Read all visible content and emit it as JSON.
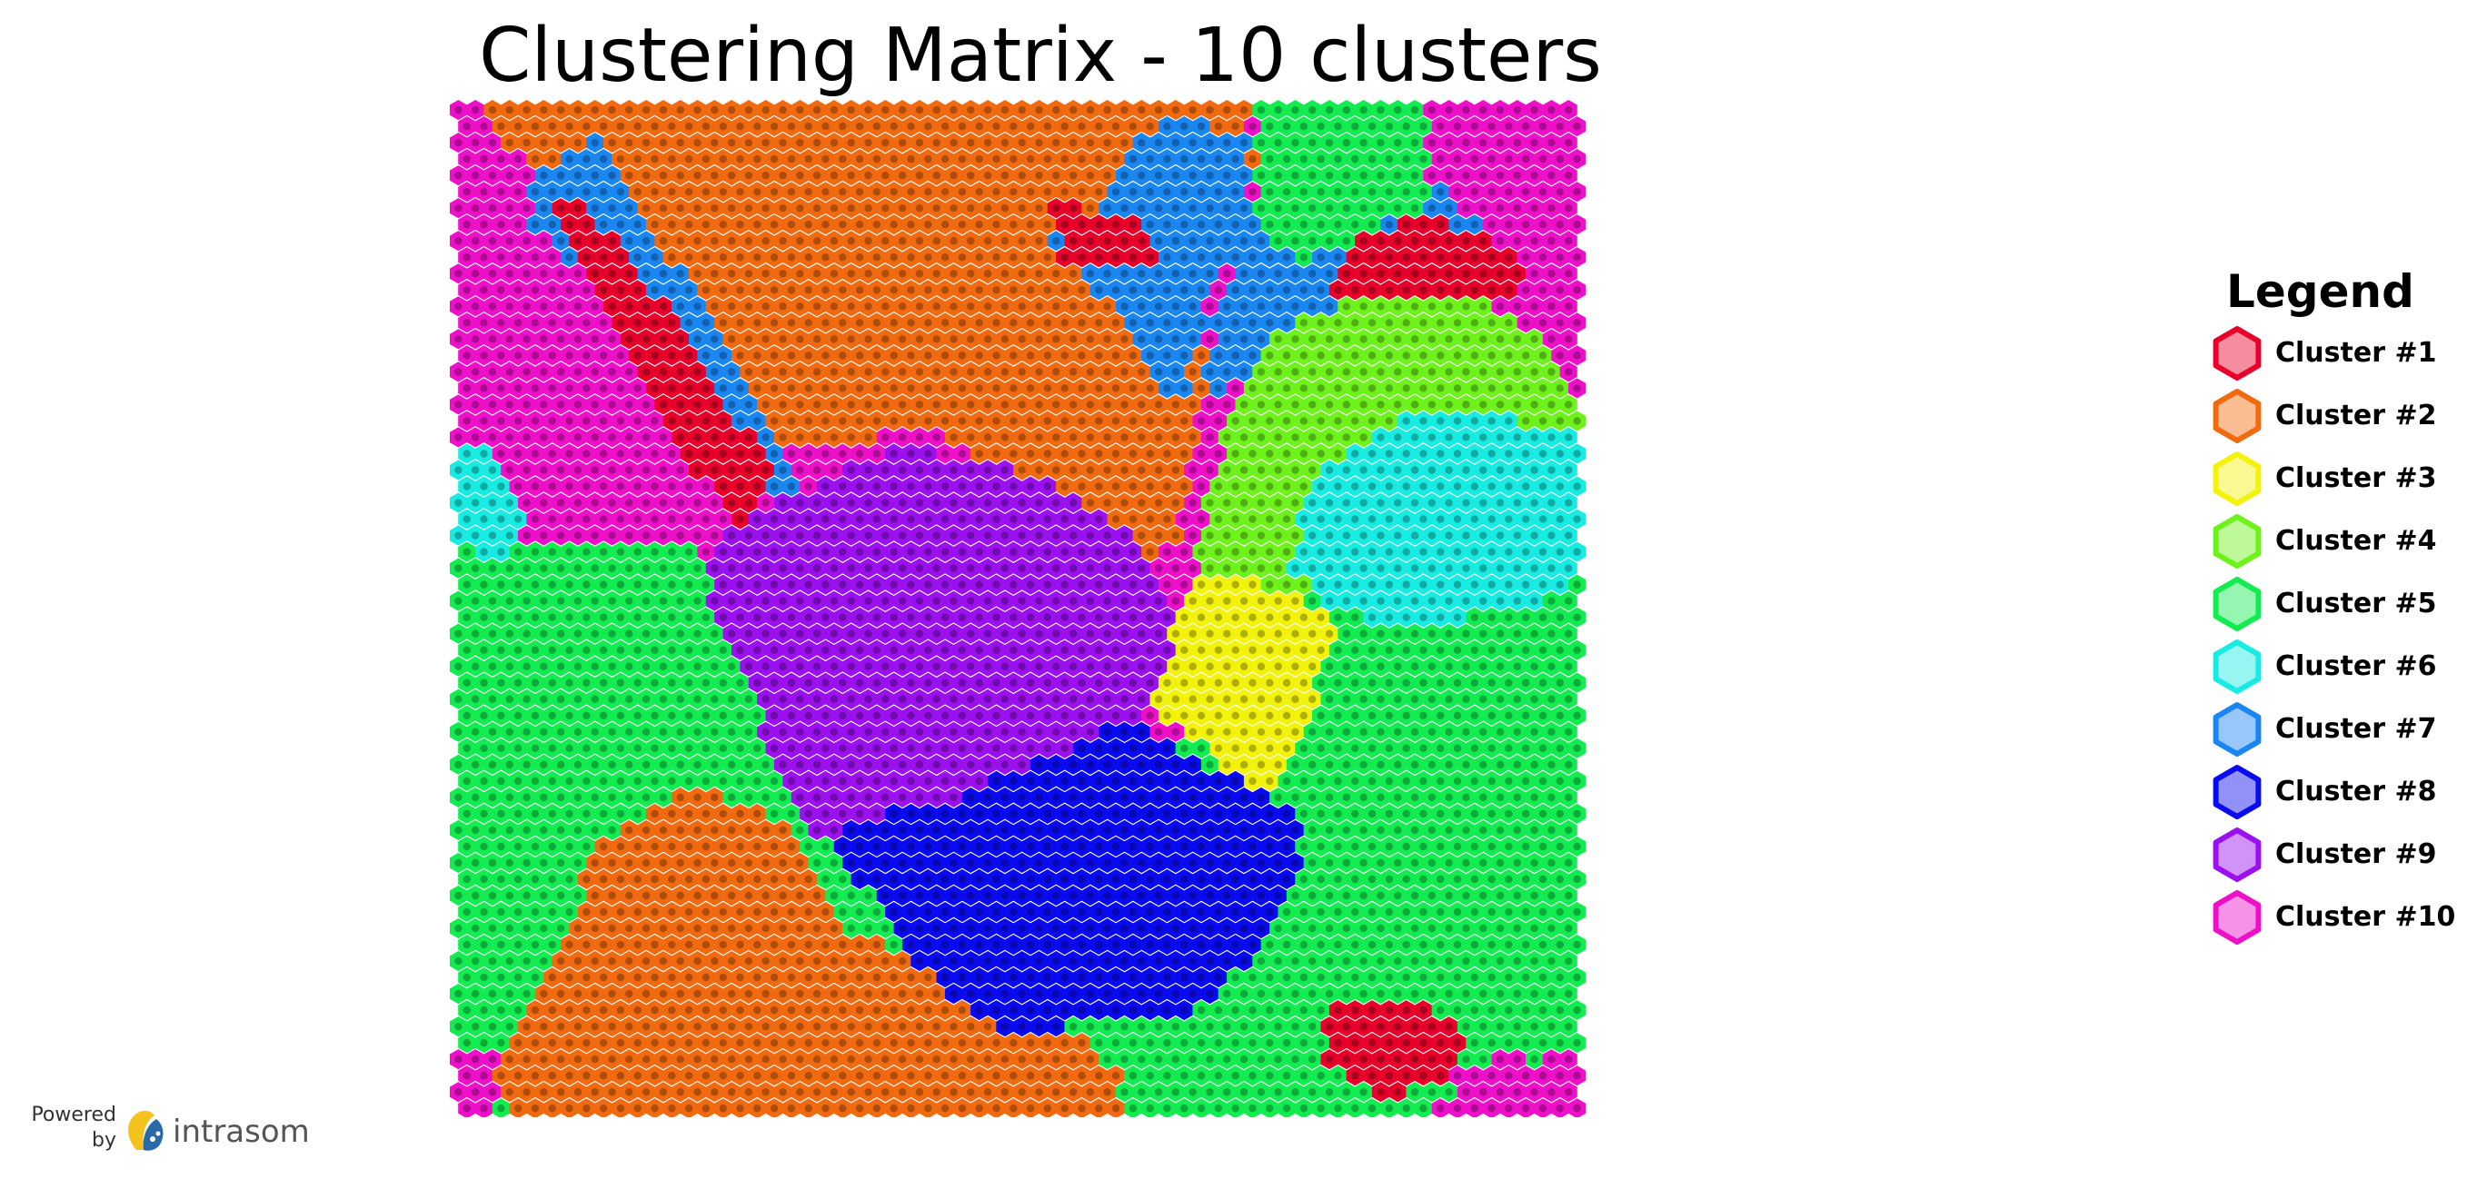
{
  "chart_data": {
    "type": "heatmap",
    "title": "Clustering Matrix - 10 clusters",
    "grid_shape": "hexagonal",
    "legend": {
      "title": "Legend",
      "placement": "right"
    },
    "clusters": [
      {
        "label": "Cluster #1",
        "color": "#e8002a"
      },
      {
        "label": "Cluster #2",
        "color": "#f26a10"
      },
      {
        "label": "Cluster #3",
        "color": "#f2f20a"
      },
      {
        "label": "Cluster #4",
        "color": "#6ef21c"
      },
      {
        "label": "Cluster #5",
        "color": "#12ec50"
      },
      {
        "label": "Cluster #6",
        "color": "#18ece2"
      },
      {
        "label": "Cluster #7",
        "color": "#1a86f2"
      },
      {
        "label": "Cluster #8",
        "color": "#0a0af0"
      },
      {
        "label": "Cluster #9",
        "color": "#9a10ee"
      },
      {
        "label": "Cluster #10",
        "color": "#ee10c8"
      }
    ]
  },
  "watermark": {
    "powered": "Powered",
    "by": "by",
    "brand": "intrasom"
  }
}
